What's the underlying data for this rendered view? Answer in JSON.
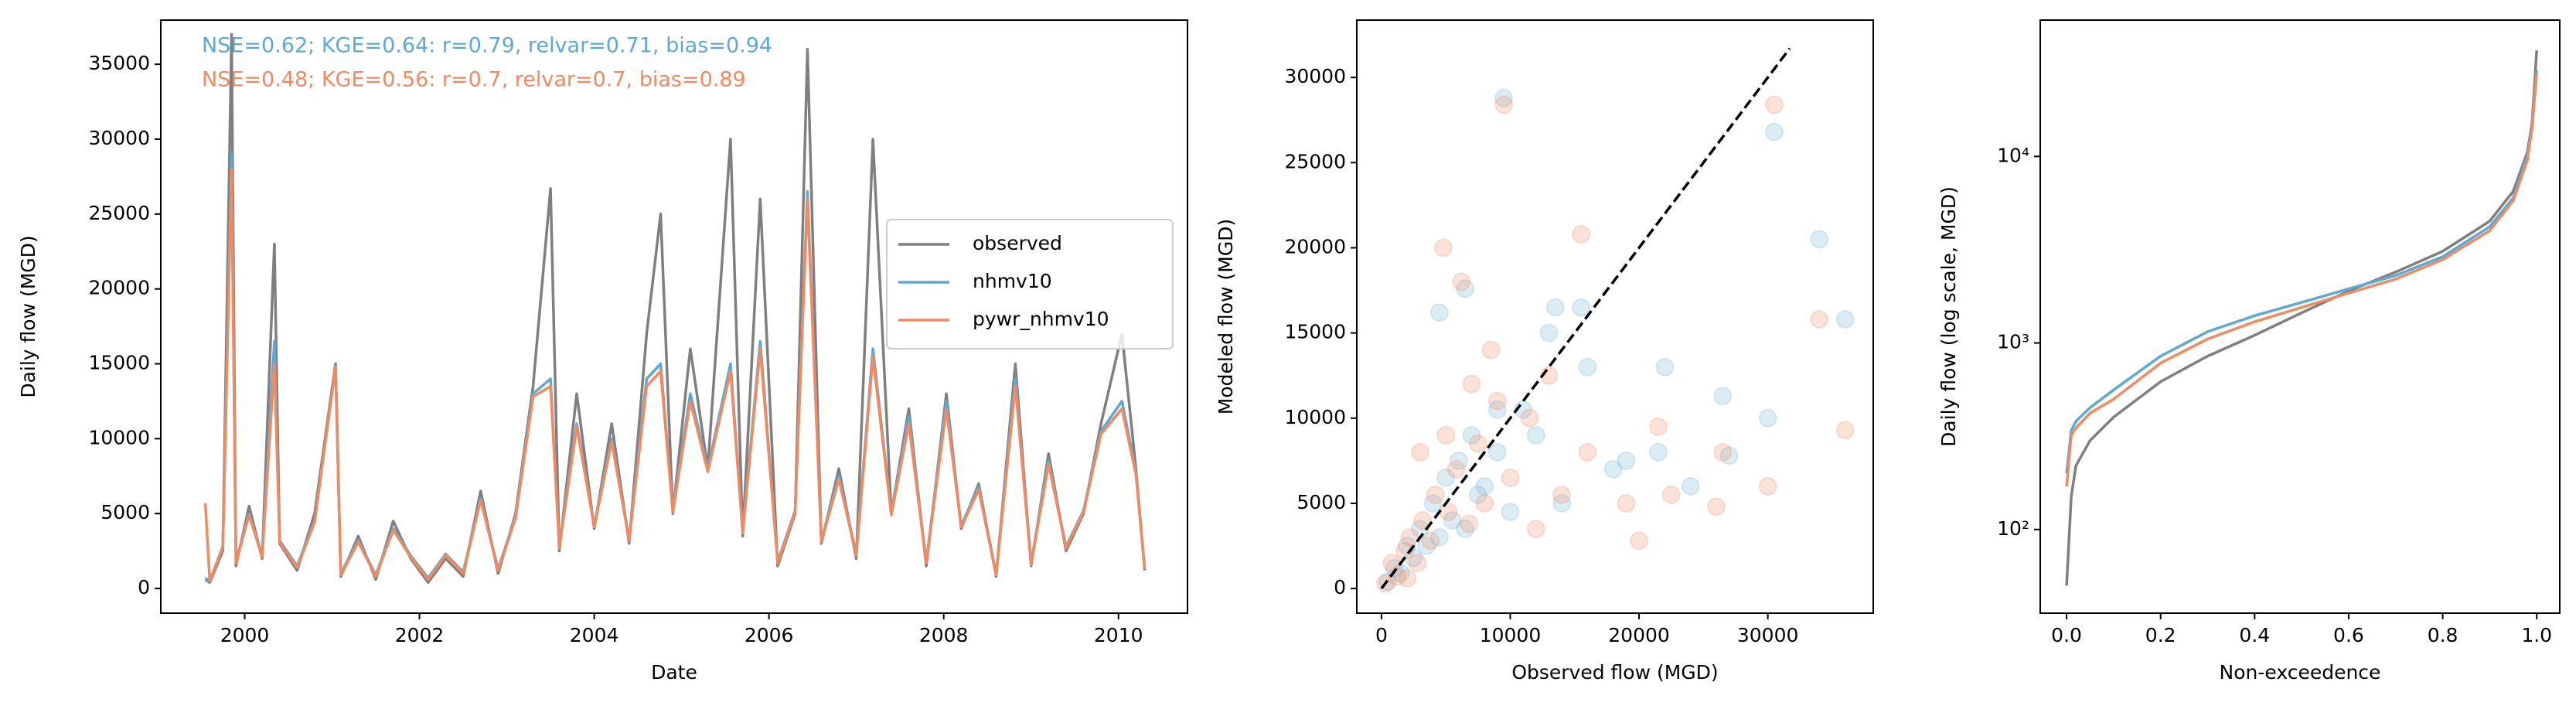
{
  "chart_data": [
    {
      "type": "line",
      "x_label": "Date",
      "y_label": "Daily flow (MGD)",
      "xlim": [
        1999.04,
        2010.79
      ],
      "ylim": [
        -1650,
        37950
      ],
      "xticks": [
        2000,
        2002,
        2004,
        2006,
        2008,
        2010
      ],
      "yticks": [
        0,
        5000,
        10000,
        15000,
        20000,
        25000,
        30000,
        35000
      ],
      "legend_loc": "center right",
      "annotations": [
        {
          "text": "NSE=0.62; KGE=0.64: r=0.79, relvar=0.71, bias=0.94",
          "color": "#5fa8d3"
        },
        {
          "text": "NSE=0.48; KGE=0.56: r=0.7, relvar=0.7, bias=0.89",
          "color": "#ef8a62"
        }
      ],
      "x": [
        1999.55,
        1999.6,
        1999.75,
        1999.85,
        1999.9,
        2000.05,
        2000.2,
        2000.34,
        2000.4,
        2000.6,
        2000.8,
        2001.04,
        2001.1,
        2001.3,
        2001.5,
        2001.7,
        2001.9,
        2002.1,
        2002.3,
        2002.5,
        2002.7,
        2002.9,
        2003.1,
        2003.3,
        2003.5,
        2003.6,
        2003.8,
        2004.0,
        2004.2,
        2004.4,
        2004.6,
        2004.76,
        2004.9,
        2005.1,
        2005.3,
        2005.56,
        2005.7,
        2005.9,
        2006.1,
        2006.3,
        2006.44,
        2006.6,
        2006.8,
        2007.0,
        2007.19,
        2007.4,
        2007.6,
        2007.8,
        2008.03,
        2008.2,
        2008.4,
        2008.6,
        2008.82,
        2009.0,
        2009.2,
        2009.4,
        2009.6,
        2009.8,
        2010.04,
        2010.2,
        2010.3
      ],
      "series": [
        {
          "name": "observed",
          "color": "#7f7f7f",
          "values": [
            600,
            400,
            2500,
            37000,
            1500,
            5500,
            2000,
            23000,
            3000,
            1200,
            5000,
            15000,
            800,
            3500,
            600,
            4500,
            2000,
            400,
            2000,
            800,
            6500,
            1000,
            5000,
            13500,
            26700,
            2500,
            13000,
            4000,
            11000,
            3000,
            17000,
            25000,
            5000,
            16000,
            8000,
            30000,
            3500,
            26000,
            1500,
            5000,
            36000,
            3000,
            8000,
            2000,
            30000,
            5000,
            12000,
            1500,
            13000,
            4000,
            7000,
            800,
            15000,
            1500,
            9000,
            2500,
            5000,
            11000,
            17000,
            8000,
            1200
          ]
        },
        {
          "name": "nhmv10",
          "color": "#5fa8d3",
          "values": [
            700,
            500,
            2800,
            29000,
            1800,
            5000,
            2200,
            16500,
            3200,
            1500,
            4500,
            14800,
            1000,
            3200,
            900,
            4000,
            2200,
            700,
            2300,
            1100,
            6000,
            1300,
            4800,
            13000,
            14000,
            2800,
            11000,
            4200,
            10000,
            3300,
            14000,
            15000,
            5200,
            13000,
            8000,
            15000,
            3800,
            16500,
            1800,
            5200,
            26500,
            3200,
            7500,
            2300,
            16000,
            5000,
            11500,
            1800,
            12500,
            4200,
            6800,
            1000,
            14000,
            1700,
            8500,
            2800,
            5200,
            10500,
            12500,
            7800,
            1400
          ]
        },
        {
          "name": "pywr_nhmv10",
          "color": "#ef8a62",
          "values": [
            5700,
            500,
            2700,
            28000,
            1700,
            4900,
            2100,
            15000,
            3100,
            1400,
            4400,
            14800,
            900,
            3100,
            800,
            3900,
            2100,
            600,
            2200,
            1000,
            5900,
            1200,
            4700,
            12800,
            13500,
            2700,
            10800,
            4100,
            9800,
            3200,
            13500,
            14500,
            5100,
            12500,
            7800,
            14500,
            3700,
            16000,
            1700,
            5100,
            26000,
            3100,
            7300,
            2200,
            15500,
            4900,
            11000,
            1700,
            12000,
            4100,
            6600,
            900,
            13500,
            1600,
            8300,
            2700,
            5100,
            10300,
            12000,
            7600,
            1300
          ]
        }
      ]
    },
    {
      "type": "scatter",
      "x_label": "Observed flow (MGD)",
      "y_label": "Modeled flow (MGD)",
      "xlim": [
        -1915,
        38186
      ],
      "ylim": [
        -1447,
        33366
      ],
      "xticks": [
        0,
        10000,
        20000,
        30000
      ],
      "yticks": [
        0,
        5000,
        10000,
        15000,
        20000,
        25000,
        30000
      ],
      "reference_line": {
        "x": [
          0,
          31700
        ],
        "y": [
          0,
          31700
        ],
        "color": "#000000"
      },
      "series": [
        {
          "color": "#5fa8d3",
          "alpha": 0.22,
          "x": [
            500,
            1000,
            1500,
            2000,
            2500,
            3000,
            3500,
            4000,
            4500,
            5000,
            5500,
            6000,
            6500,
            7000,
            7500,
            8000,
            9000,
            9500,
            10000,
            11000,
            12000,
            13000,
            13500,
            14000,
            15500,
            16000,
            18000,
            19000,
            21500,
            22000,
            24000,
            26500,
            27000,
            30000,
            30500,
            34000,
            36000,
            4500,
            6500,
            9000
          ],
          "y": [
            400,
            1200,
            900,
            2500,
            1800,
            3500,
            2500,
            5000,
            3000,
            6500,
            4000,
            7500,
            3500,
            9000,
            5500,
            6000,
            8000,
            28800,
            4500,
            10500,
            9000,
            15000,
            16500,
            5000,
            16500,
            13000,
            7000,
            7500,
            8000,
            13000,
            6000,
            11300,
            7800,
            10000,
            26800,
            20500,
            15800,
            16200,
            17600,
            10500
          ]
        },
        {
          "color": "#ef8a62",
          "alpha": 0.25,
          "x": [
            300,
            800,
            1200,
            1800,
            2200,
            2800,
            3200,
            3800,
            4200,
            4800,
            5200,
            5800,
            6200,
            6800,
            7500,
            8000,
            9000,
            9500,
            10000,
            11500,
            12000,
            13000,
            14000,
            15500,
            16000,
            19000,
            20000,
            21500,
            22500,
            26000,
            26500,
            30000,
            30500,
            34000,
            36000,
            3000,
            5000,
            7000,
            8500,
            2000
          ],
          "y": [
            300,
            1500,
            700,
            2200,
            3000,
            1500,
            4000,
            2800,
            5500,
            20000,
            4500,
            7000,
            18000,
            3800,
            8500,
            5000,
            11000,
            28400,
            6500,
            10000,
            3500,
            12500,
            5500,
            20800,
            8000,
            5000,
            2800,
            9500,
            5500,
            4800,
            8000,
            6000,
            28400,
            15800,
            9300,
            8000,
            9000,
            12000,
            14000,
            600
          ]
        }
      ]
    },
    {
      "type": "line",
      "log_y": true,
      "x_label": "Non-exceedence",
      "y_label": "Daily flow (log scale, MGD)",
      "xlim": [
        -0.056,
        1.049
      ],
      "ylim": [
        35.6,
        53800
      ],
      "xticks": [
        {
          "value": 0,
          "label": "0.0"
        },
        0.2,
        0.4,
        0.6,
        0.8,
        {
          "value": 1,
          "label": "1.0"
        }
      ],
      "yticks": [
        {
          "value": 100,
          "label": "10²"
        },
        {
          "value": 1000,
          "label": "10³"
        },
        {
          "value": 10000,
          "label": "10⁴"
        }
      ],
      "x": [
        0,
        0.01,
        0.02,
        0.05,
        0.1,
        0.2,
        0.3,
        0.4,
        0.5,
        0.6,
        0.7,
        0.8,
        0.9,
        0.95,
        0.98,
        0.99,
        1.0
      ],
      "series": [
        {
          "color": "#7f7f7f",
          "values": [
            50,
            150,
            220,
            300,
            400,
            620,
            850,
            1100,
            1450,
            1900,
            2400,
            3100,
            4500,
            6500,
            10500,
            15000,
            37000
          ]
        },
        {
          "color": "#5fa8d3",
          "values": [
            200,
            340,
            380,
            450,
            560,
            850,
            1150,
            1400,
            1650,
            1950,
            2300,
            2900,
            4200,
            6000,
            10000,
            14500,
            29000
          ]
        },
        {
          "color": "#ef8a62",
          "values": [
            170,
            320,
            350,
            420,
            500,
            780,
            1050,
            1300,
            1550,
            1850,
            2200,
            2800,
            4000,
            5800,
            9500,
            14000,
            28000
          ]
        }
      ]
    }
  ]
}
